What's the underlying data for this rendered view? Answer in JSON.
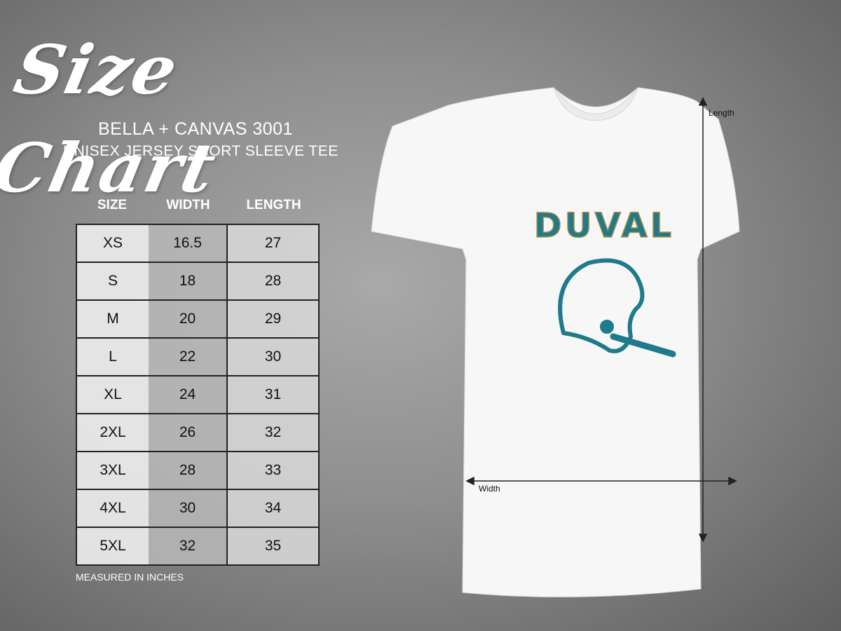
{
  "title": "Size Chart",
  "product": {
    "brand_model": "BELLA + CANVAS 3001",
    "description": "UNISEX JERSEY SHORT SLEEVE TEE"
  },
  "table": {
    "headers": [
      "SIZE",
      "WIDTH",
      "LENGTH"
    ],
    "rows": [
      [
        "XS",
        "16.5",
        "27"
      ],
      [
        "S",
        "18",
        "28"
      ],
      [
        "M",
        "20",
        "29"
      ],
      [
        "L",
        "22",
        "30"
      ],
      [
        "XL",
        "24",
        "31"
      ],
      [
        "2XL",
        "26",
        "32"
      ],
      [
        "3XL",
        "28",
        "33"
      ],
      [
        "4XL",
        "30",
        "34"
      ],
      [
        "5XL",
        "32",
        "35"
      ]
    ]
  },
  "note": "MEASURED IN INCHES",
  "shirt": {
    "print_text": "DUVAL",
    "print_color": "#1f7a8c",
    "outline_color": "#b08d3c",
    "length_label": "Length",
    "width_label": "Width"
  }
}
